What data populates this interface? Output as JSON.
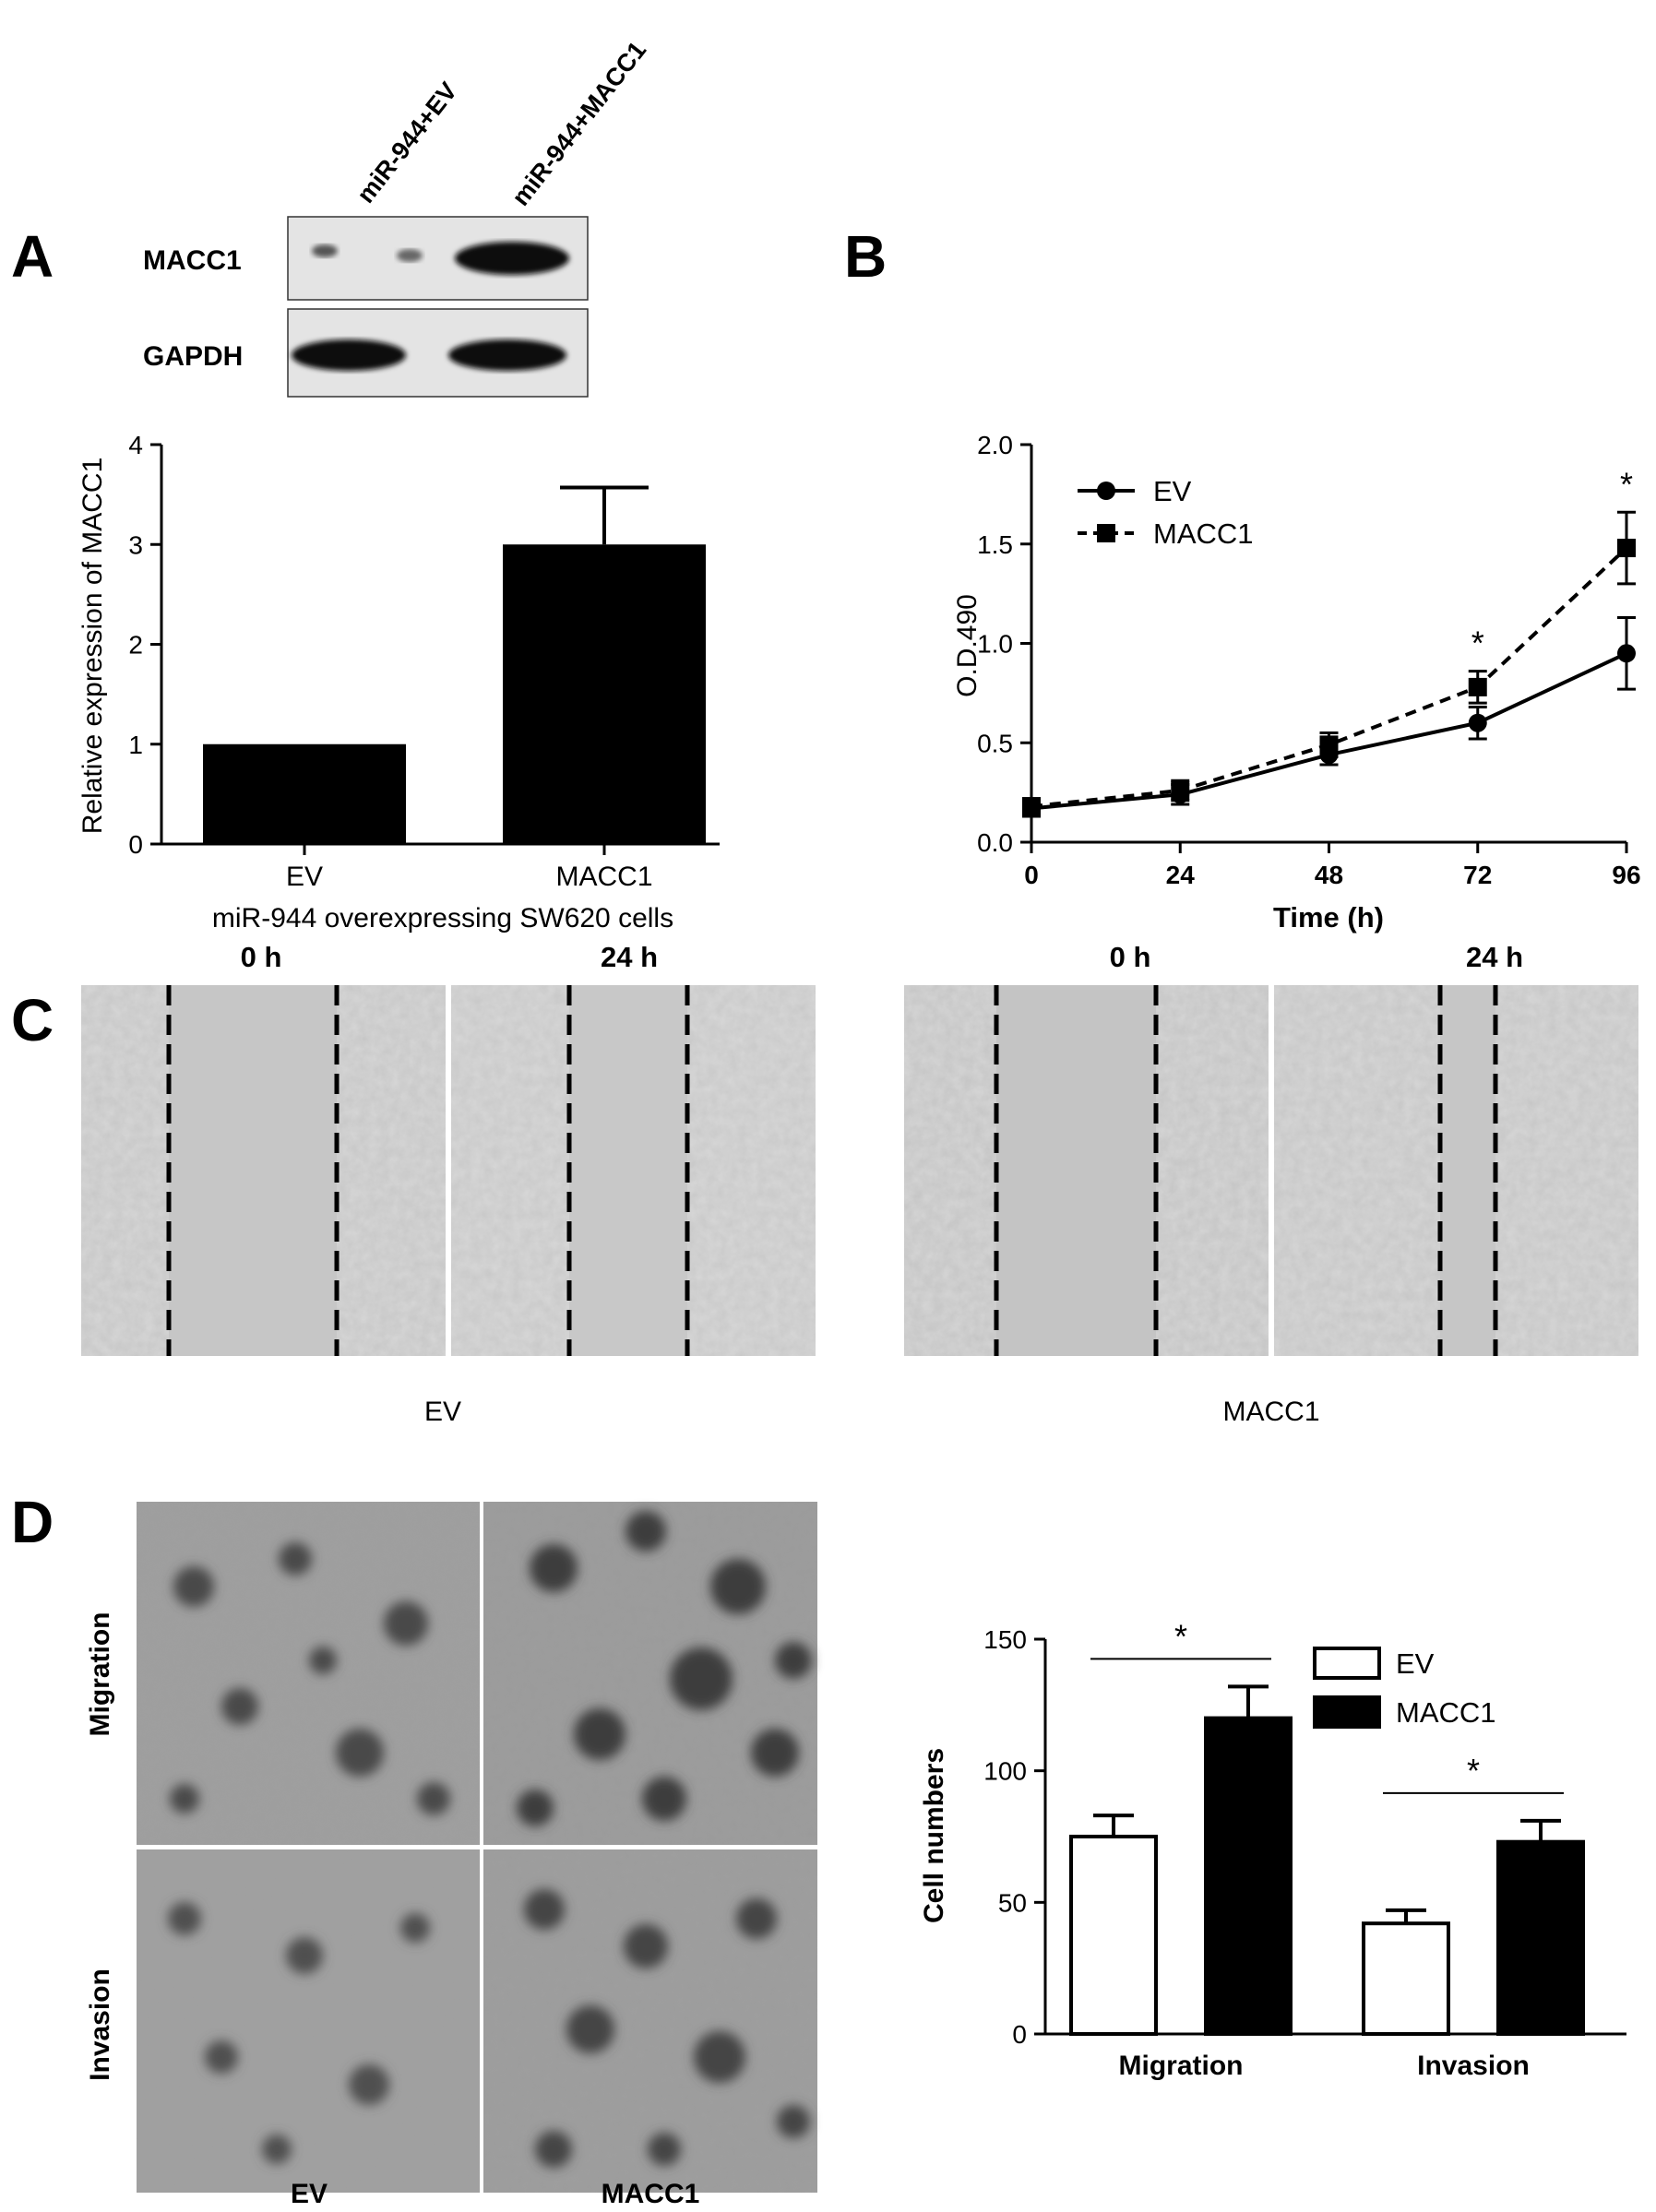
{
  "panels": {
    "A": {
      "letter": "A",
      "blot": {
        "lanes": [
          "miR-944+EV",
          "miR-944+MACC1"
        ],
        "rows": [
          "MACC1",
          "GAPDH"
        ]
      }
    },
    "B": {
      "letter": "B"
    },
    "C": {
      "letter": "C",
      "times": [
        "0 h",
        "24 h"
      ],
      "groups": [
        "EV",
        "MACC1"
      ]
    },
    "D": {
      "letter": "D",
      "row_labels": [
        "Migration",
        "Invasion"
      ],
      "col_labels": [
        "EV",
        "MACC1"
      ]
    }
  },
  "chart_data": [
    {
      "id": "A-bar",
      "type": "bar",
      "categories": [
        "EV",
        "MACC1"
      ],
      "values": [
        1.0,
        3.0
      ],
      "errors": [
        0,
        0.57
      ],
      "title": "",
      "xlabel": "miR-944 overexpressing SW620 cells",
      "ylabel": "Relative expression of MACC1",
      "ylim": [
        0,
        4
      ],
      "yticks": [
        "0",
        "1",
        "2",
        "3",
        "4"
      ],
      "colors": [
        "#000000",
        "#000000"
      ]
    },
    {
      "id": "B-line",
      "type": "line",
      "x": [
        0,
        24,
        48,
        72,
        96
      ],
      "xticks": [
        "0",
        "24",
        "48",
        "72",
        "96"
      ],
      "xlabel": "Time (h)",
      "ylabel": "O.D.490",
      "ylim": [
        0,
        2.0
      ],
      "yticks": [
        "0.0",
        "0.5",
        "1.0",
        "1.5",
        "2.0"
      ],
      "legend": "top-left",
      "series": [
        {
          "name": "EV",
          "values": [
            0.17,
            0.24,
            0.44,
            0.6,
            0.95
          ],
          "errors": [
            0.04,
            0.05,
            0.05,
            0.08,
            0.18
          ],
          "marker": "circle",
          "dash": "solid"
        },
        {
          "name": "MACC1",
          "values": [
            0.18,
            0.26,
            0.49,
            0.78,
            1.48
          ],
          "errors": [
            0.04,
            0.05,
            0.06,
            0.08,
            0.18
          ],
          "marker": "square",
          "dash": "dashed"
        }
      ],
      "significance": [
        {
          "x": 72,
          "label": "*"
        },
        {
          "x": 96,
          "label": "*"
        }
      ]
    },
    {
      "id": "D-bar",
      "type": "bar",
      "categories": [
        "Migration",
        "Invasion"
      ],
      "ylabel": "Cell numbers",
      "ylim": [
        0,
        150
      ],
      "yticks": [
        "0",
        "50",
        "100",
        "150"
      ],
      "legend": "top-right",
      "series": [
        {
          "name": "EV",
          "values": [
            75,
            42
          ],
          "errors": [
            8,
            5
          ],
          "fill": "#ffffff"
        },
        {
          "name": "MACC1",
          "values": [
            120,
            73
          ],
          "errors": [
            12,
            8
          ],
          "fill": "#000000"
        }
      ],
      "significance": [
        {
          "category": "Migration",
          "label": "*"
        },
        {
          "category": "Invasion",
          "label": "*"
        }
      ]
    }
  ]
}
